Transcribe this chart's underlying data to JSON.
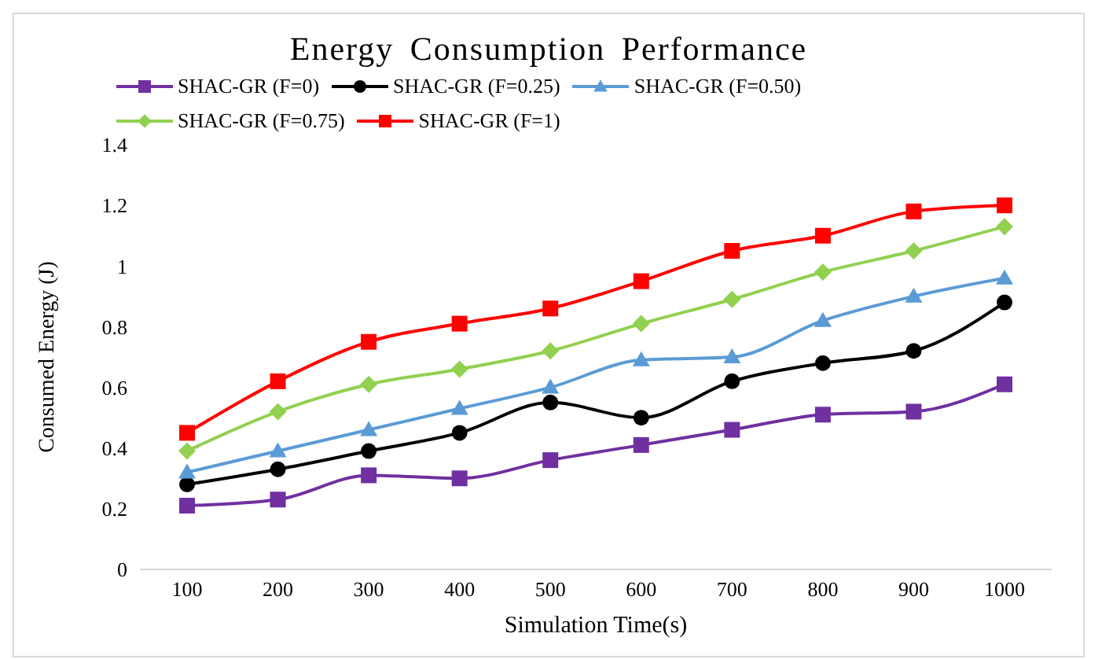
{
  "chart_data": {
    "type": "line",
    "title": "Energy Consumption Performance",
    "xlabel": "Simulation Time(s)",
    "ylabel": "Consumed Energy (J)",
    "categories": [
      "100",
      "200",
      "300",
      "400",
      "500",
      "600",
      "700",
      "800",
      "900",
      "1000"
    ],
    "series": [
      {
        "name": "SHAC-GR (F=0)",
        "color": "#7030a0",
        "marker": "square",
        "values": [
          0.21,
          0.23,
          0.31,
          0.3,
          0.36,
          0.41,
          0.46,
          0.51,
          0.52,
          0.61
        ]
      },
      {
        "name": "SHAC-GR (F=0.25)",
        "color": "#000000",
        "marker": "circle",
        "values": [
          0.28,
          0.33,
          0.39,
          0.45,
          0.55,
          0.5,
          0.62,
          0.68,
          0.72,
          0.88
        ]
      },
      {
        "name": "SHAC-GR (F=0.50)",
        "color": "#5b9bd5",
        "marker": "triangle",
        "values": [
          0.32,
          0.39,
          0.46,
          0.53,
          0.6,
          0.69,
          0.7,
          0.82,
          0.9,
          0.96
        ]
      },
      {
        "name": "SHAC-GR (F=0.75)",
        "color": "#92d050",
        "marker": "diamond",
        "values": [
          0.39,
          0.52,
          0.61,
          0.66,
          0.72,
          0.81,
          0.89,
          0.98,
          1.05,
          1.13
        ]
      },
      {
        "name": "SHAC-GR (F=1)",
        "color": "#ff0000",
        "marker": "square",
        "values": [
          0.45,
          0.62,
          0.75,
          0.81,
          0.86,
          0.95,
          1.05,
          1.1,
          1.18,
          1.2
        ]
      }
    ],
    "ylim": [
      0,
      1.4
    ],
    "yticks": [
      0,
      0.2,
      0.4,
      0.6,
      0.8,
      1,
      1.2,
      1.4
    ],
    "grid": false,
    "legend": "top",
    "line_style": "solid"
  }
}
